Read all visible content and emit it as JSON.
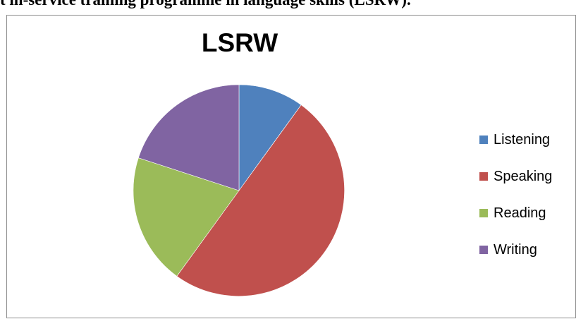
{
  "document": {
    "heading": "t in-service training programme in language skills (LSRW)."
  },
  "chart_data": {
    "type": "pie",
    "title": "LSRW",
    "categories": [
      "Listening",
      "Speaking",
      "Reading",
      "Writing"
    ],
    "values": [
      10,
      50,
      20,
      20
    ],
    "colors": [
      "#4f81bd",
      "#c0504d",
      "#9bbb59",
      "#8064a2"
    ],
    "legend_position": "right"
  }
}
